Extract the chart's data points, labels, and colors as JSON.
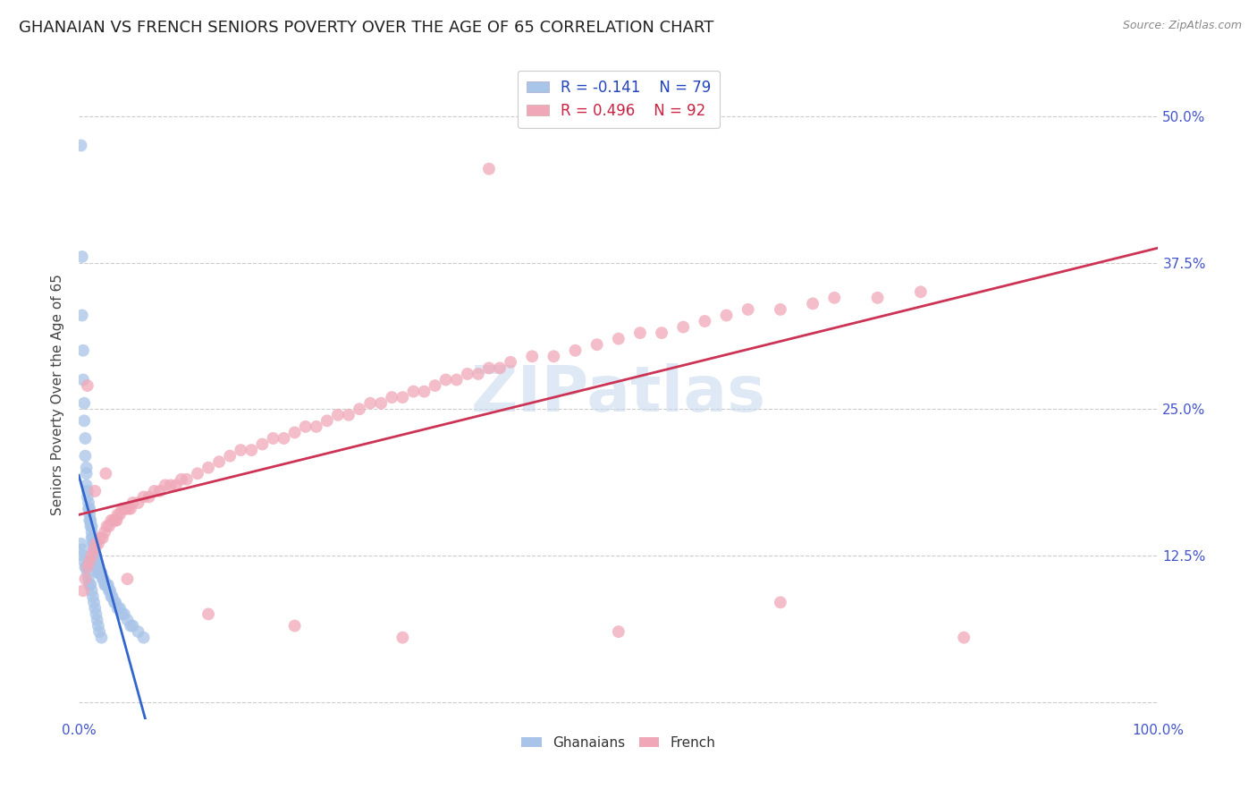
{
  "title": "GHANAIAN VS FRENCH SENIORS POVERTY OVER THE AGE OF 65 CORRELATION CHART",
  "source": "Source: ZipAtlas.com",
  "ylabel": "Seniors Poverty Over the Age of 65",
  "xlim": [
    0.0,
    1.0
  ],
  "ylim": [
    -0.015,
    0.54
  ],
  "yticks": [
    0.0,
    0.125,
    0.25,
    0.375,
    0.5
  ],
  "yticklabels": [
    "",
    "12.5%",
    "25.0%",
    "37.5%",
    "50.0%"
  ],
  "xtick_positions": [
    0.0,
    0.25,
    0.5,
    0.75,
    1.0
  ],
  "xticklabels": [
    "0.0%",
    "",
    "",
    "",
    "100.0%"
  ],
  "background_color": "#ffffff",
  "ghanaian_color": "#a8c4e8",
  "french_color": "#f0a8b8",
  "ghanaian_line_color": "#3366cc",
  "french_line_color": "#cc3355",
  "ghanaian_R": -0.141,
  "ghanaian_N": 79,
  "french_R": 0.496,
  "french_N": 92,
  "grid_color": "#cccccc",
  "tick_color": "#4455cc",
  "tick_fontsize": 11,
  "title_fontsize": 13,
  "ghanaian_x": [
    0.002,
    0.003,
    0.003,
    0.004,
    0.004,
    0.005,
    0.005,
    0.006,
    0.006,
    0.007,
    0.007,
    0.007,
    0.008,
    0.008,
    0.009,
    0.009,
    0.01,
    0.01,
    0.01,
    0.011,
    0.011,
    0.012,
    0.012,
    0.012,
    0.013,
    0.013,
    0.014,
    0.014,
    0.015,
    0.015,
    0.016,
    0.016,
    0.017,
    0.017,
    0.018,
    0.018,
    0.019,
    0.02,
    0.021,
    0.022,
    0.023,
    0.024,
    0.025,
    0.026,
    0.027,
    0.028,
    0.029,
    0.03,
    0.031,
    0.033,
    0.034,
    0.036,
    0.038,
    0.04,
    0.042,
    0.045,
    0.048,
    0.05,
    0.055,
    0.06,
    0.002,
    0.003,
    0.004,
    0.005,
    0.006,
    0.007,
    0.008,
    0.009,
    0.01,
    0.011,
    0.012,
    0.013,
    0.014,
    0.015,
    0.016,
    0.017,
    0.018,
    0.019,
    0.021
  ],
  "ghanaian_y": [
    0.475,
    0.38,
    0.33,
    0.3,
    0.275,
    0.255,
    0.24,
    0.225,
    0.21,
    0.2,
    0.195,
    0.185,
    0.18,
    0.175,
    0.17,
    0.165,
    0.165,
    0.16,
    0.155,
    0.155,
    0.15,
    0.15,
    0.145,
    0.14,
    0.14,
    0.135,
    0.135,
    0.13,
    0.13,
    0.125,
    0.125,
    0.12,
    0.12,
    0.115,
    0.115,
    0.11,
    0.11,
    0.11,
    0.11,
    0.105,
    0.105,
    0.1,
    0.1,
    0.1,
    0.1,
    0.095,
    0.095,
    0.09,
    0.09,
    0.085,
    0.085,
    0.08,
    0.08,
    0.075,
    0.075,
    0.07,
    0.065,
    0.065,
    0.06,
    0.055,
    0.135,
    0.13,
    0.125,
    0.12,
    0.115,
    0.115,
    0.11,
    0.105,
    0.1,
    0.1,
    0.095,
    0.09,
    0.085,
    0.08,
    0.075,
    0.07,
    0.065,
    0.06,
    0.055
  ],
  "french_x": [
    0.004,
    0.006,
    0.008,
    0.01,
    0.012,
    0.014,
    0.016,
    0.018,
    0.02,
    0.022,
    0.024,
    0.026,
    0.028,
    0.03,
    0.032,
    0.034,
    0.036,
    0.038,
    0.04,
    0.042,
    0.044,
    0.046,
    0.048,
    0.05,
    0.055,
    0.06,
    0.065,
    0.07,
    0.075,
    0.08,
    0.085,
    0.09,
    0.095,
    0.1,
    0.11,
    0.12,
    0.13,
    0.14,
    0.15,
    0.16,
    0.17,
    0.18,
    0.19,
    0.2,
    0.21,
    0.22,
    0.23,
    0.24,
    0.25,
    0.26,
    0.27,
    0.28,
    0.29,
    0.3,
    0.31,
    0.32,
    0.33,
    0.34,
    0.35,
    0.36,
    0.37,
    0.38,
    0.39,
    0.4,
    0.42,
    0.44,
    0.46,
    0.48,
    0.5,
    0.52,
    0.54,
    0.56,
    0.58,
    0.6,
    0.62,
    0.65,
    0.68,
    0.7,
    0.74,
    0.78,
    0.008,
    0.015,
    0.025,
    0.035,
    0.045,
    0.38,
    0.12,
    0.2,
    0.3,
    0.5,
    0.65,
    0.82
  ],
  "french_y": [
    0.095,
    0.105,
    0.115,
    0.12,
    0.125,
    0.13,
    0.135,
    0.135,
    0.14,
    0.14,
    0.145,
    0.15,
    0.15,
    0.155,
    0.155,
    0.155,
    0.16,
    0.16,
    0.165,
    0.165,
    0.165,
    0.165,
    0.165,
    0.17,
    0.17,
    0.175,
    0.175,
    0.18,
    0.18,
    0.185,
    0.185,
    0.185,
    0.19,
    0.19,
    0.195,
    0.2,
    0.205,
    0.21,
    0.215,
    0.215,
    0.22,
    0.225,
    0.225,
    0.23,
    0.235,
    0.235,
    0.24,
    0.245,
    0.245,
    0.25,
    0.255,
    0.255,
    0.26,
    0.26,
    0.265,
    0.265,
    0.27,
    0.275,
    0.275,
    0.28,
    0.28,
    0.285,
    0.285,
    0.29,
    0.295,
    0.295,
    0.3,
    0.305,
    0.31,
    0.315,
    0.315,
    0.32,
    0.325,
    0.33,
    0.335,
    0.335,
    0.34,
    0.345,
    0.345,
    0.35,
    0.27,
    0.18,
    0.195,
    0.155,
    0.105,
    0.455,
    0.075,
    0.065,
    0.055,
    0.06,
    0.085,
    0.055
  ]
}
